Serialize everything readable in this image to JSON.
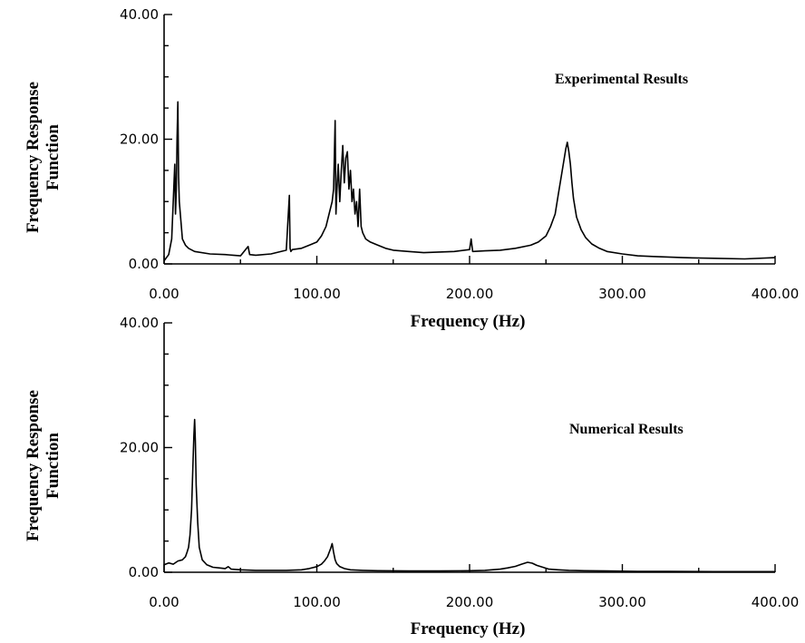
{
  "chart_data": [
    {
      "type": "line",
      "xlabel": "Frequency (Hz)",
      "ylabel": [
        "Frequency Response",
        "Function"
      ],
      "annotation": "Experimental Results",
      "xlim": [
        0,
        400
      ],
      "ylim": [
        0,
        40
      ],
      "xticks": [
        0,
        100,
        200,
        300,
        400
      ],
      "xtick_labels": [
        "0.00",
        "100.00",
        "200.00",
        "300.00",
        "400.00"
      ],
      "yticks": [
        0,
        20,
        40
      ],
      "ytick_labels": [
        "0.00",
        "20.00",
        "40.00"
      ],
      "grid": false,
      "series": [
        {
          "x": [
            0,
            3,
            5,
            6,
            7,
            7.5,
            8,
            8.5,
            9,
            9.5,
            10,
            11,
            12,
            14,
            16,
            20,
            30,
            40,
            50,
            55,
            56,
            60,
            70,
            80,
            82,
            82.5,
            83,
            84,
            90,
            95,
            100,
            103,
            106,
            108,
            110,
            111,
            112,
            112.5,
            113,
            114,
            115,
            116,
            117,
            118,
            119,
            120,
            121,
            122,
            123,
            124,
            125,
            126,
            127,
            128,
            129,
            130,
            132,
            135,
            140,
            145,
            150,
            160,
            170,
            180,
            190,
            200,
            201,
            202,
            210,
            220,
            230,
            240,
            245,
            250,
            253,
            256,
            258,
            260,
            262,
            263,
            264,
            265,
            266,
            267,
            268,
            270,
            273,
            276,
            280,
            285,
            290,
            300,
            310,
            320,
            340,
            360,
            380,
            400
          ],
          "y": [
            0.5,
            1.5,
            4,
            10,
            16,
            8,
            12,
            20,
            26,
            14,
            10,
            7,
            4,
            3,
            2.5,
            2,
            1.6,
            1.5,
            1.3,
            2.8,
            1.5,
            1.4,
            1.6,
            2.2,
            11,
            2.5,
            2,
            2.3,
            2.5,
            3,
            3.5,
            4.5,
            6,
            8,
            10,
            12,
            23,
            8,
            11,
            16,
            10,
            15,
            19,
            13,
            17,
            18,
            12,
            15,
            10,
            12,
            8,
            10,
            6,
            12,
            6,
            5,
            4,
            3.5,
            3,
            2.5,
            2.2,
            2,
            1.8,
            1.9,
            2,
            2.3,
            4,
            2,
            2.1,
            2.2,
            2.5,
            3,
            3.5,
            4.5,
            6,
            8,
            11,
            14,
            17,
            18.5,
            19.5,
            18,
            16,
            13,
            10.5,
            7.5,
            5.5,
            4.2,
            3.2,
            2.5,
            2,
            1.6,
            1.3,
            1.2,
            1,
            0.9,
            0.8,
            1
          ]
        }
      ]
    },
    {
      "type": "line",
      "xlabel": "Frequency (Hz)",
      "ylabel": [
        "Frequency Response",
        "Function"
      ],
      "annotation": "Numerical Results",
      "xlim": [
        0,
        400
      ],
      "ylim": [
        0,
        40
      ],
      "xticks": [
        0,
        100,
        200,
        300,
        400
      ],
      "xtick_labels": [
        "0.00",
        "100.00",
        "200.00",
        "300.00",
        "400.00"
      ],
      "yticks": [
        0,
        20,
        40
      ],
      "ytick_labels": [
        "0.00",
        "20.00",
        "40.00"
      ],
      "grid": false,
      "series": [
        {
          "x": [
            0,
            3,
            6,
            9,
            12,
            14,
            15,
            16,
            17,
            18,
            19,
            19.5,
            20,
            20.5,
            21,
            22,
            23,
            25,
            28,
            32,
            36,
            40,
            42,
            44,
            50,
            60,
            70,
            80,
            90,
            95,
            100,
            103,
            105,
            107,
            109,
            110,
            111,
            112,
            113,
            115,
            118,
            122,
            130,
            140,
            160,
            180,
            200,
            210,
            220,
            225,
            230,
            234,
            238,
            241,
            244,
            248,
            252,
            258,
            265,
            275,
            290,
            310,
            330,
            360,
            400
          ],
          "y": [
            1.2,
            1.5,
            1.3,
            1.8,
            2,
            2.5,
            3.2,
            4,
            6,
            10,
            18,
            22,
            24.5,
            21,
            14,
            8,
            4,
            2,
            1.2,
            0.8,
            0.7,
            0.6,
            0.9,
            0.5,
            0.4,
            0.3,
            0.3,
            0.3,
            0.4,
            0.6,
            0.9,
            1.3,
            1.8,
            2.5,
            3.8,
            4.6,
            3.2,
            2,
            1.4,
            0.9,
            0.6,
            0.4,
            0.3,
            0.25,
            0.2,
            0.2,
            0.25,
            0.3,
            0.5,
            0.7,
            0.95,
            1.3,
            1.6,
            1.45,
            1.1,
            0.8,
            0.5,
            0.4,
            0.3,
            0.25,
            0.2,
            0.15,
            0.15,
            0.1,
            0.1
          ]
        }
      ]
    }
  ]
}
